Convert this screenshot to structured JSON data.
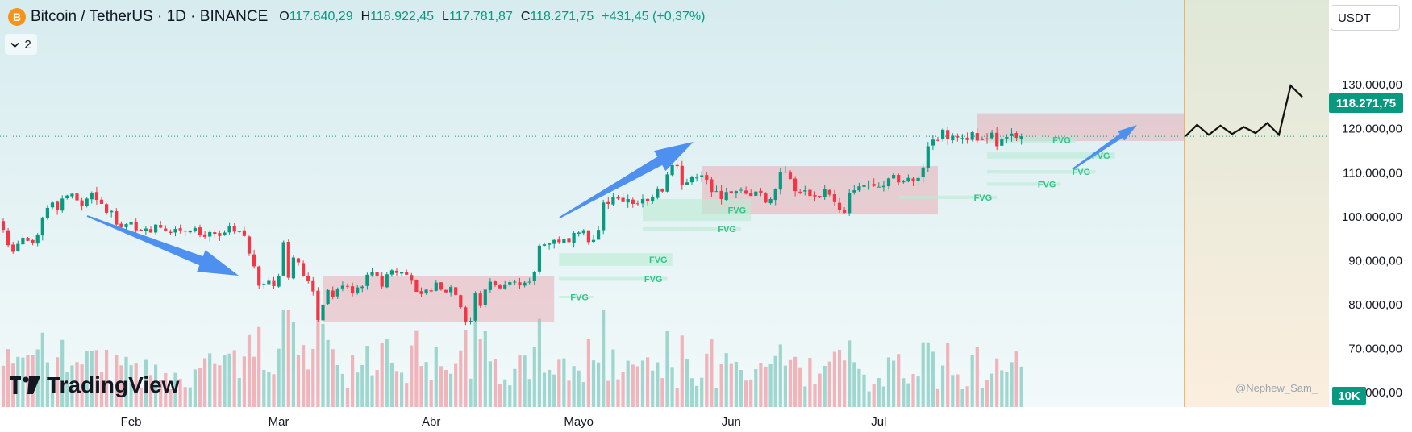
{
  "header": {
    "coin_icon": "B",
    "symbol": "Bitcoin / TetherUS · 1D · BINANCE",
    "open_label": "O",
    "open": "117.840,29",
    "high_label": "H",
    "high": "118.922,45",
    "low_label": "L",
    "low": "117.781,87",
    "close_label": "C",
    "close": "118.271,75",
    "change": "+431,45 (+0,37%)"
  },
  "indicators": {
    "count": "2",
    "icon": "chevron-down-icon"
  },
  "currency": "USDT",
  "logo_text": "TradingView",
  "watermark": "@Nephew_Sam_",
  "colors": {
    "up": "#089981",
    "down": "#f23645",
    "arrow": "#4d90f0",
    "zone": "#e8a0a8",
    "fvg": "#b9ebd3"
  },
  "chart_data": {
    "type": "candlestick",
    "x_axis_labels": [
      "Feb",
      "Mar",
      "Abr",
      "Mayo",
      "Jun",
      "Jul"
    ],
    "y_ticks": [
      "60.000,00",
      "70.000,00",
      "80.000,00",
      "90.000,00",
      "100.000,00",
      "110.000,00",
      "120.000,00",
      "130.000,00"
    ],
    "ylim": [
      59000,
      135000
    ],
    "current_price": "118.271,75",
    "volume_label": "10K",
    "closes": [
      97000,
      93500,
      92000,
      93800,
      95200,
      94500,
      94000,
      95800,
      99800,
      102000,
      103200,
      101500,
      104100,
      104800,
      105200,
      103700,
      102400,
      104100,
      105400,
      103800,
      102900,
      100900,
      101300,
      98200,
      97600,
      98300,
      98700,
      96900,
      96900,
      97300,
      96400,
      98200,
      97500,
      96700,
      96300,
      97200,
      96900,
      96600,
      96800,
      97400,
      95800,
      95400,
      96500,
      96100,
      95600,
      96400,
      97800,
      96600,
      96700,
      95600,
      91600,
      88700,
      84300,
      84700,
      85400,
      84200,
      86500,
      94200,
      86100,
      90700,
      89600,
      86600,
      85300,
      83000,
      76500,
      80000,
      83300,
      81800,
      83600,
      84300,
      84200,
      82600,
      83900,
      84100,
      86800,
      87400,
      86400,
      84100,
      86900,
      87800,
      87200,
      87500,
      86800,
      85400,
      82900,
      82400,
      83400,
      83000,
      85000,
      83400,
      82800,
      84000,
      82200,
      79400,
      76100,
      76300,
      82600,
      79700,
      83400,
      85200,
      84500,
      83700,
      84600,
      85100,
      85200,
      84400,
      85000,
      85200,
      87500,
      93400,
      93700,
      93900,
      94700,
      94200,
      95000,
      94200,
      96300,
      96400,
      96900,
      94200,
      94700,
      97000,
      103200,
      102900,
      104500,
      104100,
      103300,
      104000,
      102900,
      102900,
      104000,
      103600,
      104400,
      106400,
      105700,
      109600,
      111700,
      111500,
      107300,
      107800,
      109000,
      108900,
      109400,
      108400,
      105600,
      105800,
      104000,
      105600,
      105400,
      105800,
      106100,
      105200,
      104700,
      105700,
      105300,
      103200,
      104000,
      106200,
      110200,
      110200,
      108600,
      105800,
      105600,
      106000,
      104700,
      104600,
      104600,
      106200,
      105000,
      103300,
      101500,
      100900,
      105400,
      106000,
      106900,
      107100,
      107300,
      107000,
      106800,
      107000,
      108700,
      109500,
      107800,
      108100,
      108800,
      108200,
      108800,
      111200,
      116000,
      117500,
      117400,
      119800,
      117600,
      118400,
      118000,
      117900,
      117400,
      119200,
      117300,
      117600,
      117700,
      119100,
      116000,
      117600,
      118100,
      118900,
      117900,
      118271
    ],
    "zones": [
      {
        "type": "range",
        "from_bar": 65,
        "to_bar": 112,
        "low": 76000,
        "high": 86500
      },
      {
        "type": "range",
        "from_bar": 142,
        "to_bar": 190,
        "low": 100500,
        "high": 111500
      },
      {
        "type": "range",
        "from_bar": 198,
        "to_bar": 240,
        "low": 117200,
        "high": 123500
      }
    ],
    "fvg": [
      {
        "label": "FVG",
        "from_bar": 113,
        "to_bar": 136,
        "low": 88800,
        "high": 91700
      },
      {
        "label": "FVG",
        "from_bar": 113,
        "to_bar": 135,
        "low": 85400,
        "high": 86300
      },
      {
        "label": "FVG",
        "from_bar": 113,
        "to_bar": 120,
        "low": 82000,
        "high": 82000
      },
      {
        "label": "FVG",
        "from_bar": 130,
        "to_bar": 152,
        "low": 99000,
        "high": 104000
      },
      {
        "label": "FVG",
        "from_bar": 130,
        "to_bar": 150,
        "low": 96800,
        "high": 97600
      },
      {
        "label": "FVG",
        "from_bar": 182,
        "to_bar": 202,
        "low": 104000,
        "high": 104800
      },
      {
        "label": "FVG",
        "from_bar": 200,
        "to_bar": 218,
        "low": 116800,
        "high": 118200
      },
      {
        "label": "FVG",
        "from_bar": 200,
        "to_bar": 226,
        "low": 113200,
        "high": 114600
      },
      {
        "label": "FVG",
        "from_bar": 200,
        "to_bar": 222,
        "low": 109800,
        "high": 110600
      },
      {
        "label": "FVG",
        "from_bar": 200,
        "to_bar": 215,
        "low": 107000,
        "high": 107800
      }
    ],
    "projection": [
      118271,
      120900,
      118600,
      120700,
      118800,
      120400,
      119000,
      121300,
      118600,
      129800,
      127200
    ]
  }
}
